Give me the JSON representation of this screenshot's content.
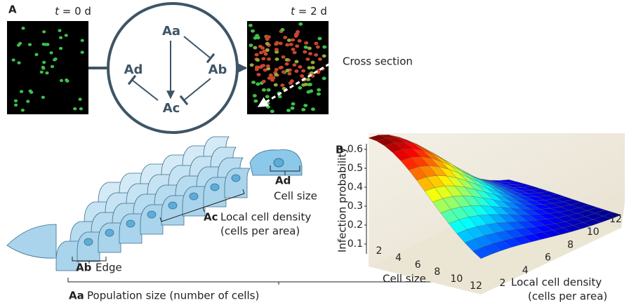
{
  "panel_a": {
    "label": "A",
    "image_before": {
      "var": "t",
      "rest": " = 0 d"
    },
    "image_after": {
      "var": "t",
      "rest": " = 2 d"
    },
    "cross_section": "Cross section",
    "nodes": [
      "Aa",
      "Ab",
      "Ac",
      "Ad"
    ],
    "annotations": [
      {
        "code": "Ad",
        "text": "Cell size"
      },
      {
        "code": "Ac",
        "text": "Local cell density",
        "text2": "(cells per area)"
      },
      {
        "code": "Ab",
        "text": "Edge"
      },
      {
        "code": "Aa",
        "text": "Population size (number of cells)"
      }
    ]
  },
  "panel_b": {
    "label": "B",
    "z_label": "Infection probability",
    "z_ticks": [
      0.6,
      0.5,
      0.4,
      0.3,
      0.2,
      0.1
    ],
    "x_label": "Cell size",
    "x_ticks": [
      2,
      4,
      6,
      8,
      10,
      12
    ],
    "y_label": "Local cell density",
    "y_label_sub": "(cells per area)",
    "y_ticks": [
      2,
      4,
      6,
      8,
      10,
      12
    ]
  }
}
